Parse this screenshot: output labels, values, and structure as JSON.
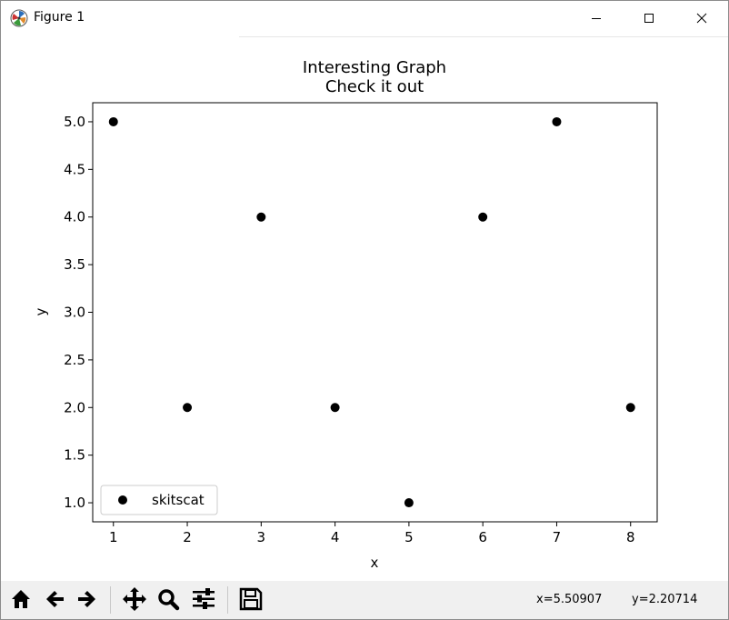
{
  "window": {
    "title": "Figure 1",
    "icons": {
      "app": "matplotlib-logo-icon",
      "minimize": "minimize-icon",
      "maximize": "maximize-icon",
      "close": "close-icon"
    }
  },
  "toolbar": {
    "buttons": [
      "home-icon",
      "back-arrow-icon",
      "forward-arrow-icon",
      "pan-icon",
      "zoom-icon",
      "configure-subplots-icon",
      "save-icon"
    ],
    "coord_x": "x=5.50907",
    "coord_y": "y=2.20714"
  },
  "chart_data": {
    "type": "scatter",
    "title": "Interesting Graph",
    "subtitle": "Check it out",
    "xlabel": "x",
    "ylabel": "y",
    "xlim": [
      0.72,
      8.36
    ],
    "ylim": [
      0.8,
      5.2
    ],
    "xticks": [
      1,
      2,
      3,
      4,
      5,
      6,
      7,
      8
    ],
    "xtick_labels": [
      "1",
      "2",
      "3",
      "4",
      "5",
      "6",
      "7",
      "8"
    ],
    "yticks": [
      1.0,
      1.5,
      2.0,
      2.5,
      3.0,
      3.5,
      4.0,
      4.5,
      5.0
    ],
    "ytick_labels": [
      "1.0",
      "1.5",
      "2.0",
      "2.5",
      "3.0",
      "3.5",
      "4.0",
      "4.5",
      "5.0"
    ],
    "grid": false,
    "legend_position": "lower-left",
    "series": [
      {
        "name": "skitscat",
        "color": "#000000",
        "marker": "circle",
        "x": [
          1,
          2,
          3,
          4,
          5,
          6,
          7,
          8
        ],
        "y": [
          5,
          2,
          4,
          2,
          1,
          4,
          5,
          2
        ]
      }
    ]
  }
}
